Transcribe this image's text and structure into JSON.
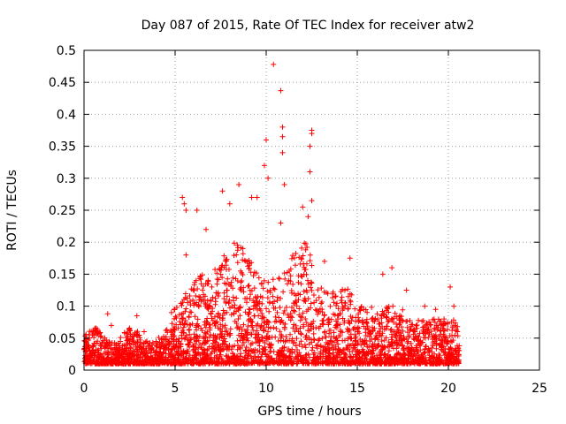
{
  "chart_data": {
    "type": "scatter",
    "title": "Day 087 of 2015, Rate Of TEC Index for receiver atw2",
    "xlabel": "GPS time / hours",
    "ylabel": "ROTI / TECUs",
    "xlim": [
      0,
      25
    ],
    "ylim": [
      0,
      0.5
    ],
    "x_ticks": [
      "0",
      "5",
      "10",
      "15",
      "20",
      "25"
    ],
    "y_ticks": [
      "0",
      "0.05",
      "0.1",
      "0.15",
      "0.2",
      "0.25",
      "0.3",
      "0.35",
      "0.4",
      "0.45",
      "0.5"
    ],
    "grid": true,
    "marker": "+",
    "color": "#ff0000",
    "x_data_range": [
      0,
      20.6
    ],
    "series": [
      {
        "points": [
          [
            0.1,
            0.02
          ],
          [
            0.3,
            0.05
          ],
          [
            0.6,
            0.065
          ],
          [
            1.3,
            0.088
          ],
          [
            1.5,
            0.07
          ],
          [
            2.9,
            0.085
          ],
          [
            3.3,
            0.06
          ],
          [
            4.8,
            0.09
          ],
          [
            5.4,
            0.27
          ],
          [
            5.5,
            0.26
          ],
          [
            5.6,
            0.25
          ],
          [
            5.6,
            0.18
          ],
          [
            6.2,
            0.25
          ],
          [
            6.7,
            0.22
          ],
          [
            7.6,
            0.28
          ],
          [
            8.0,
            0.26
          ],
          [
            8.5,
            0.29
          ],
          [
            9.2,
            0.27
          ],
          [
            9.5,
            0.27
          ],
          [
            9.9,
            0.32
          ],
          [
            10.0,
            0.36
          ],
          [
            10.1,
            0.3
          ],
          [
            10.4,
            0.478
          ],
          [
            10.8,
            0.437
          ],
          [
            10.9,
            0.38
          ],
          [
            10.9,
            0.365
          ],
          [
            10.9,
            0.34
          ],
          [
            11.0,
            0.29
          ],
          [
            10.8,
            0.23
          ],
          [
            12.0,
            0.255
          ],
          [
            12.5,
            0.375
          ],
          [
            12.5,
            0.37
          ],
          [
            12.4,
            0.35
          ],
          [
            12.4,
            0.31
          ],
          [
            12.5,
            0.265
          ],
          [
            12.3,
            0.24
          ],
          [
            13.2,
            0.17
          ],
          [
            14.6,
            0.175
          ],
          [
            16.4,
            0.15
          ],
          [
            16.9,
            0.16
          ],
          [
            17.7,
            0.125
          ],
          [
            18.7,
            0.1
          ],
          [
            19.3,
            0.095
          ],
          [
            20.1,
            0.13
          ],
          [
            20.3,
            0.1
          ],
          [
            20.5,
            0.06
          ]
        ]
      }
    ]
  }
}
